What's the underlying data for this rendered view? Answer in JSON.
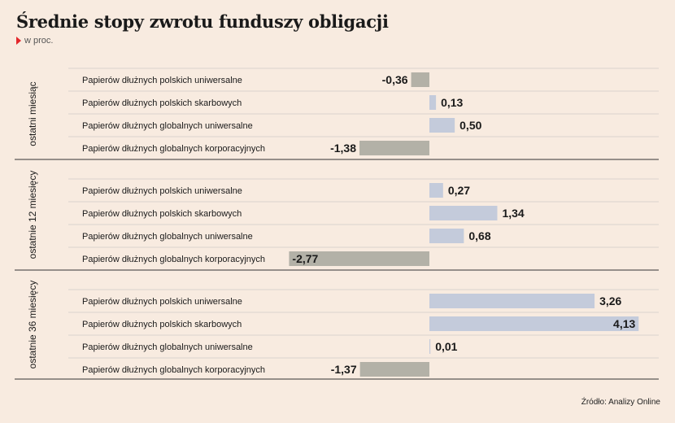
{
  "title": "Średnie stopy zwrotu funduszy obligacji",
  "subtitle": "w proc.",
  "source": "Źródło: Analizy Online",
  "colors": {
    "positive": "#c4cbdb",
    "negative": "#b3b1a7",
    "divider": "#333333",
    "gridline": "#bbbbbb"
  },
  "chart_data": {
    "type": "bar",
    "orientation": "horizontal",
    "categories": [
      "Papierów dłużnych polskich uniwersalne",
      "Papierów dłużnych polskich skarbowych",
      "Papierów dłużnych globalnych uniwersalne",
      "Papierów dłużnych globalnych korporacyjnych"
    ],
    "groups": [
      {
        "label": "ostatni miesiąc",
        "values": [
          -0.36,
          0.13,
          0.5,
          -1.38
        ],
        "value_labels": [
          "-0,36",
          "0,13",
          "0,50",
          "-1,38"
        ]
      },
      {
        "label": "ostatnie 12 miesięcy",
        "values": [
          0.27,
          1.34,
          0.68,
          -2.77
        ],
        "value_labels": [
          "0,27",
          "1,34",
          "0,68",
          "-2,77"
        ]
      },
      {
        "label": "ostatnie 36 miesięcy",
        "values": [
          3.26,
          4.13,
          0.01,
          -1.37
        ],
        "value_labels": [
          "3,26",
          "4,13",
          "0,01",
          "-1,37"
        ]
      }
    ]
  }
}
